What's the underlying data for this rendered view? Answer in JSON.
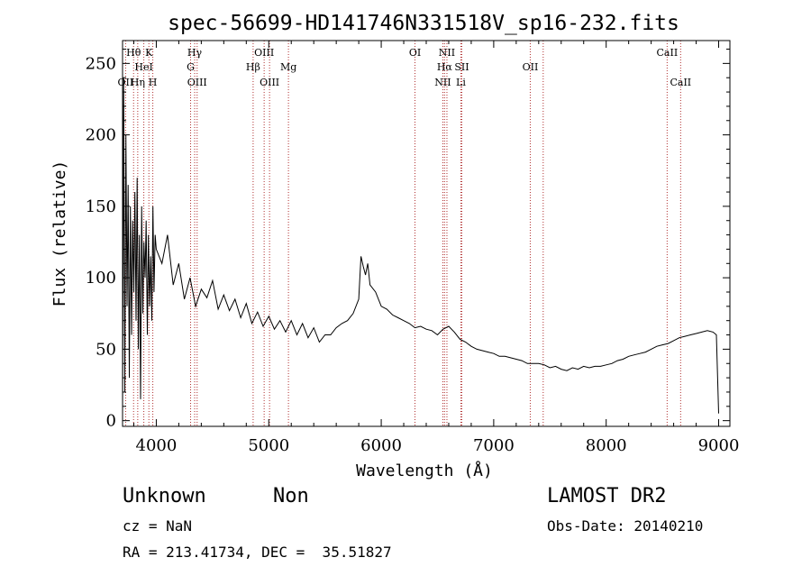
{
  "chart_data": {
    "type": "line",
    "title": "spec-56699-HD141746N331518V_sp16-232.fits",
    "xlabel": "Wavelength (Å)",
    "ylabel": "Flux (relative)",
    "xlim": [
      3700,
      9100
    ],
    "ylim": [
      -4,
      266
    ],
    "xticks": [
      4000,
      5000,
      6000,
      7000,
      8000,
      9000
    ],
    "yticks": [
      0,
      50,
      100,
      150,
      200,
      250
    ],
    "grid": false,
    "series": [
      {
        "x": [
          3700,
          3710,
          3720,
          3730,
          3740,
          3750,
          3760,
          3770,
          3780,
          3790,
          3800,
          3810,
          3820,
          3830,
          3840,
          3850,
          3860,
          3870,
          3880,
          3890,
          3900,
          3910,
          3920,
          3930,
          3940,
          3950,
          3960,
          3970,
          3980,
          3990,
          4000,
          4050,
          4100,
          4150,
          4200,
          4250,
          4300,
          4350,
          4400,
          4450,
          4500,
          4550,
          4600,
          4650,
          4700,
          4750,
          4800,
          4850,
          4900,
          4950,
          5000,
          5050,
          5100,
          5150,
          5200,
          5250,
          5300,
          5350,
          5400,
          5450,
          5500,
          5550,
          5600,
          5650,
          5700,
          5750,
          5800,
          5820,
          5840,
          5860,
          5880,
          5900,
          5950,
          6000,
          6050,
          6100,
          6150,
          6200,
          6250,
          6300,
          6350,
          6400,
          6450,
          6500,
          6550,
          6600,
          6650,
          6700,
          6750,
          6800,
          6850,
          6900,
          6950,
          7000,
          7050,
          7100,
          7150,
          7200,
          7250,
          7300,
          7350,
          7400,
          7450,
          7500,
          7550,
          7600,
          7650,
          7700,
          7750,
          7800,
          7850,
          7900,
          7950,
          8000,
          8050,
          8100,
          8150,
          8200,
          8250,
          8300,
          8350,
          8400,
          8450,
          8500,
          8550,
          8600,
          8650,
          8700,
          8750,
          8800,
          8850,
          8900,
          8950,
          8980,
          9000
        ],
        "values": [
          5,
          240,
          20,
          200,
          80,
          165,
          30,
          150,
          60,
          140,
          90,
          160,
          70,
          170,
          50,
          130,
          15,
          150,
          75,
          125,
          100,
          140,
          60,
          130,
          80,
          115,
          70,
          150,
          90,
          130,
          120,
          110,
          130,
          95,
          110,
          85,
          100,
          80,
          92,
          86,
          98,
          78,
          88,
          77,
          85,
          72,
          82,
          68,
          76,
          66,
          73,
          64,
          70,
          62,
          70,
          60,
          68,
          58,
          65,
          55,
          60,
          60,
          65,
          68,
          70,
          75,
          85,
          115,
          108,
          102,
          110,
          95,
          90,
          80,
          78,
          74,
          72,
          70,
          68,
          65,
          66,
          64,
          63,
          60,
          64,
          66,
          62,
          57,
          55,
          52,
          50,
          49,
          48,
          47,
          45,
          45,
          44,
          43,
          42,
          40,
          40,
          40,
          39,
          37,
          38,
          36,
          35,
          37,
          36,
          38,
          37,
          38,
          38,
          39,
          40,
          42,
          43,
          45,
          46,
          47,
          48,
          50,
          52,
          53,
          54,
          56,
          58,
          59,
          60,
          61,
          62,
          63,
          62,
          60,
          5
        ]
      }
    ],
    "lines": [
      {
        "label": "Hθ",
        "x": 3798,
        "row": 1
      },
      {
        "label": "K",
        "x": 3934,
        "row": 1
      },
      {
        "label": "HeI",
        "x": 3889,
        "row": 2
      },
      {
        "label": "OII",
        "x": 3727,
        "row": 3
      },
      {
        "label": "Hη",
        "x": 3835,
        "row": 3
      },
      {
        "label": "H",
        "x": 3969,
        "row": 3
      },
      {
        "label": "Hγ",
        "x": 4341,
        "row": 1
      },
      {
        "label": "G",
        "x": 4305,
        "row": 2
      },
      {
        "label": "OIII",
        "x": 4363,
        "row": 3
      },
      {
        "label": "OIII",
        "x": 4959,
        "row": 1
      },
      {
        "label": "Hβ",
        "x": 4861,
        "row": 2
      },
      {
        "label": "OIII",
        "x": 5007,
        "row": 3
      },
      {
        "label": "Mg",
        "x": 5175,
        "row": 2
      },
      {
        "label": "OI",
        "x": 6300,
        "row": 1
      },
      {
        "label": "NII",
        "x": 6584,
        "row": 1
      },
      {
        "label": "Hα",
        "x": 6563,
        "row": 2
      },
      {
        "label": "SII",
        "x": 6716,
        "row": 2
      },
      {
        "label": "NII",
        "x": 6548,
        "row": 3
      },
      {
        "label": "Li",
        "x": 6708,
        "row": 3
      },
      {
        "label": "OII",
        "x": 7325,
        "row": 2
      },
      {
        "label": "CaII",
        "x": 8542,
        "row": 1
      },
      {
        "label": "CaII",
        "x": 8662,
        "row": 3
      }
    ],
    "line_positions": [
      3727,
      3798,
      3835,
      3889,
      3934,
      3969,
      4305,
      4341,
      4363,
      4861,
      4959,
      5007,
      5175,
      6300,
      6548,
      6563,
      6584,
      6708,
      6716,
      7325,
      7440,
      8542,
      8662
    ]
  },
  "info": {
    "object_class": "Unknown",
    "subclass": "Non",
    "survey": "LAMOST DR2",
    "cz": "cz = NaN",
    "obs_date": "Obs-Date: 20140210",
    "coords": "RA = 213.41734, DEC =  35.51827"
  },
  "colors": {
    "spectrum": "#000000",
    "line_markers": "#b03030",
    "axes": "#000000"
  }
}
